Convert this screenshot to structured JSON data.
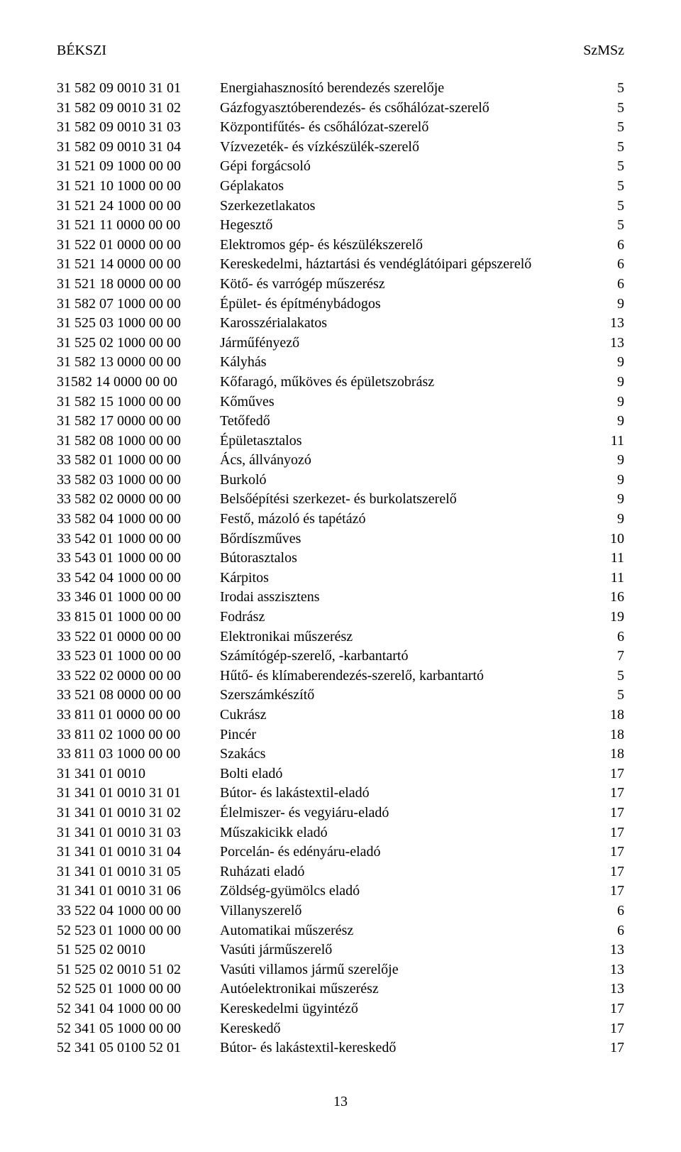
{
  "header": {
    "left": "BÉKSZI",
    "right": "SzMSz"
  },
  "rows": [
    {
      "code": "31 582 09 0010 31 01",
      "desc": "Energiahasznosító berendezés szerelője",
      "num": "5"
    },
    {
      "code": "31 582 09 0010 31 02",
      "desc": "Gázfogyasztóberendezés- és csőhálózat-szerelő",
      "num": "5"
    },
    {
      "code": "31 582 09 0010 31 03",
      "desc": "Központifűtés- és csőhálózat-szerelő",
      "num": "5"
    },
    {
      "code": "31 582 09 0010 31 04",
      "desc": "Vízvezeték- és vízkészülék-szerelő",
      "num": "5"
    },
    {
      "code": "31 521 09 1000 00 00",
      "desc": "Gépi forgácsoló",
      "num": "5"
    },
    {
      "code": "31 521 10 1000 00 00",
      "desc": "Géplakatos",
      "num": "5"
    },
    {
      "code": "31 521 24 1000 00 00",
      "desc": "Szerkezetlakatos",
      "num": "5"
    },
    {
      "code": "31 521 11 0000 00 00",
      "desc": "Hegesztő",
      "num": "5"
    },
    {
      "code": "31 522 01 0000 00 00",
      "desc": "Elektromos gép- és készülékszerelő",
      "num": "6"
    },
    {
      "code": "31 521 14 0000 00 00",
      "desc": "Kereskedelmi, háztartási és vendéglátóipari gépszerelő",
      "num": "6"
    },
    {
      "code": "31 521 18 0000 00 00",
      "desc": "Kötő- és varrógép műszerész",
      "num": "6"
    },
    {
      "code": "31 582 07 1000 00 00",
      "desc": "Épület- és építménybádogos",
      "num": "9"
    },
    {
      "code": "31 525 03 1000 00 00",
      "desc": "Karosszérialakatos",
      "num": "13"
    },
    {
      "code": "31 525 02 1000 00 00",
      "desc": "Járműfényező",
      "num": "13"
    },
    {
      "code": "31 582 13 0000 00 00",
      "desc": "Kályhás",
      "num": "9"
    },
    {
      "code": "31582 14 0000 00 00",
      "desc": "Kőfaragó, műköves és épületszobrász",
      "num": "9"
    },
    {
      "code": "31 582 15 1000 00 00",
      "desc": "Kőműves",
      "num": "9"
    },
    {
      "code": "31 582 17 0000 00 00",
      "desc": "Tetőfedő",
      "num": "9"
    },
    {
      "code": "31 582 08 1000 00 00",
      "desc": "Épületasztalos",
      "num": "11"
    },
    {
      "code": "33 582 01 1000 00 00",
      "desc": "Ács, állványozó",
      "num": "9"
    },
    {
      "code": "33 582 03 1000 00 00",
      "desc": "Burkoló",
      "num": "9"
    },
    {
      "code": "33 582 02 0000 00 00",
      "desc": "Belsőépítési szerkezet- és burkolatszerelő",
      "num": "9"
    },
    {
      "code": "33 582 04 1000 00 00",
      "desc": "Festő, mázoló és tapétázó",
      "num": "9"
    },
    {
      "code": "33 542 01 1000 00 00",
      "desc": "Bőrdíszműves",
      "num": "10"
    },
    {
      "code": "33 543 01 1000 00 00",
      "desc": "Bútorasztalos",
      "num": "11"
    },
    {
      "code": "33 542 04 1000 00 00",
      "desc": "Kárpitos",
      "num": "11"
    },
    {
      "code": "33 346 01 1000 00 00",
      "desc": "Irodai asszisztens",
      "num": "16"
    },
    {
      "code": "33 815 01 1000 00 00",
      "desc": "Fodrász",
      "num": "19"
    },
    {
      "code": "33 522 01 0000 00 00",
      "desc": "Elektronikai műszerész",
      "num": "6"
    },
    {
      "code": "33 523 01 1000 00 00",
      "desc": "Számítógép-szerelő, -karbantartó",
      "num": "7"
    },
    {
      "code": "33 522 02 0000 00 00",
      "desc": "Hűtő- és klímaberendezés-szerelő, karbantartó",
      "num": "5"
    },
    {
      "code": "33 521 08 0000 00 00",
      "desc": "Szerszámkészítő",
      "num": "5"
    },
    {
      "code": "33 811 01 0000 00 00",
      "desc": "Cukrász",
      "num": "18"
    },
    {
      "code": "33 811 02 1000 00 00",
      "desc": "Pincér",
      "num": "18"
    },
    {
      "code": "33 811 03 1000 00 00",
      "desc": "Szakács",
      "num": "18"
    },
    {
      "code": "31 341 01 0010",
      "desc": "Bolti eladó",
      "num": "17"
    },
    {
      "code": "31 341 01 0010 31 01",
      "desc": "Bútor- és lakástextil-eladó",
      "num": "17"
    },
    {
      "code": "31 341 01 0010 31 02",
      "desc": "Élelmiszer- és vegyiáru-eladó",
      "num": "17"
    },
    {
      "code": "31 341 01 0010 31 03",
      "desc": "Műszakicikk eladó",
      "num": "17"
    },
    {
      "code": "31 341 01 0010 31 04",
      "desc": "Porcelán- és edényáru-eladó",
      "num": "17"
    },
    {
      "code": "31 341 01 0010 31 05",
      "desc": "Ruházati eladó",
      "num": "17"
    },
    {
      "code": "31 341 01 0010 31 06",
      "desc": "Zöldség-gyümölcs eladó",
      "num": "17"
    },
    {
      "code": "33 522 04 1000 00 00",
      "desc": "Villanyszerelő",
      "num": "6"
    },
    {
      "code": "52 523 01 1000 00 00",
      "desc": "Automatikai műszerész",
      "num": "6"
    },
    {
      "code": "51 525 02 0010",
      "desc": "Vasúti járműszerelő",
      "num": "13"
    },
    {
      "code": "51 525 02 0010 51 02",
      "desc": "Vasúti villamos jármű szerelője",
      "num": "13"
    },
    {
      "code": "52 525 01 1000 00 00",
      "desc": "Autóelektronikai műszerész",
      "num": "13"
    },
    {
      "code": "52 341 04 1000 00 00",
      "desc": "Kereskedelmi ügyintéző",
      "num": "17"
    },
    {
      "code": "52 341 05 1000 00 00",
      "desc": "Kereskedő",
      "num": "17"
    },
    {
      "code": "52 341 05 0100 52 01",
      "desc": "Bútor- és lakástextil-kereskedő",
      "num": "17"
    }
  ],
  "footer": {
    "page_number": "13"
  }
}
